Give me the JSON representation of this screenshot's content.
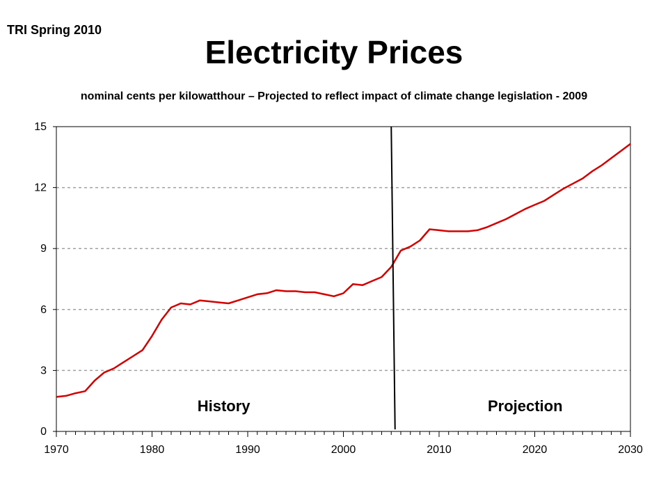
{
  "header": {
    "corner_label": "TRI Spring 2010",
    "title": "Electricity Prices",
    "subtitle": "nominal cents per kilowatthour – Projected to reflect impact of climate change legislation - 2009"
  },
  "chart_data": {
    "type": "line",
    "title": "Electricity Prices",
    "subtitle": "nominal cents per kilowatthour – Projected to reflect impact of climate change legislation - 2009",
    "xlabel": "",
    "ylabel": "",
    "xlim": [
      1970,
      2030
    ],
    "ylim": [
      0,
      15
    ],
    "x_ticks": [
      1970,
      1980,
      1990,
      2000,
      2010,
      2020,
      2030
    ],
    "y_ticks": [
      0,
      3,
      6,
      9,
      12,
      15
    ],
    "grid": "horizontal-dashed",
    "line_color": "#d40000",
    "divider_color": "#000000",
    "divider": {
      "top": [
        2005,
        15
      ],
      "bottom": [
        2005.4,
        0.1
      ]
    },
    "annotations": [
      {
        "text": "History",
        "x": 1987.5,
        "y": 1
      },
      {
        "text": "Projection",
        "x": 2019,
        "y": 1
      }
    ],
    "series": [
      {
        "x": [
          1970,
          1971,
          1972,
          1973,
          1974,
          1975,
          1976,
          1977,
          1978,
          1979,
          1980,
          1981,
          1982,
          1983,
          1984,
          1985,
          1986,
          1987,
          1988,
          1989,
          1990,
          1991,
          1992,
          1993,
          1994,
          1995,
          1996,
          1997,
          1998,
          1999,
          2000,
          2001,
          2002,
          2003,
          2004,
          2005,
          2006,
          2007,
          2008,
          2009,
          2010,
          2011,
          2012,
          2013,
          2014,
          2015,
          2016,
          2017,
          2018,
          2019,
          2020,
          2021,
          2022,
          2023,
          2024,
          2025,
          2026,
          2027,
          2028,
          2029,
          2030
        ],
        "y": [
          1.7,
          1.75,
          1.88,
          1.98,
          2.5,
          2.9,
          3.1,
          3.4,
          3.7,
          4.0,
          4.7,
          5.5,
          6.1,
          6.3,
          6.25,
          6.45,
          6.4,
          6.35,
          6.3,
          6.45,
          6.6,
          6.75,
          6.8,
          6.95,
          6.9,
          6.9,
          6.85,
          6.85,
          6.75,
          6.65,
          6.8,
          7.25,
          7.2,
          7.4,
          7.6,
          8.1,
          8.9,
          9.1,
          9.4,
          9.95,
          9.9,
          9.85,
          9.85,
          9.85,
          9.9,
          10.05,
          10.25,
          10.45,
          10.7,
          10.95,
          11.15,
          11.35,
          11.65,
          11.95,
          12.2,
          12.45,
          12.8,
          13.1,
          13.45,
          13.8,
          14.15
        ]
      }
    ]
  }
}
